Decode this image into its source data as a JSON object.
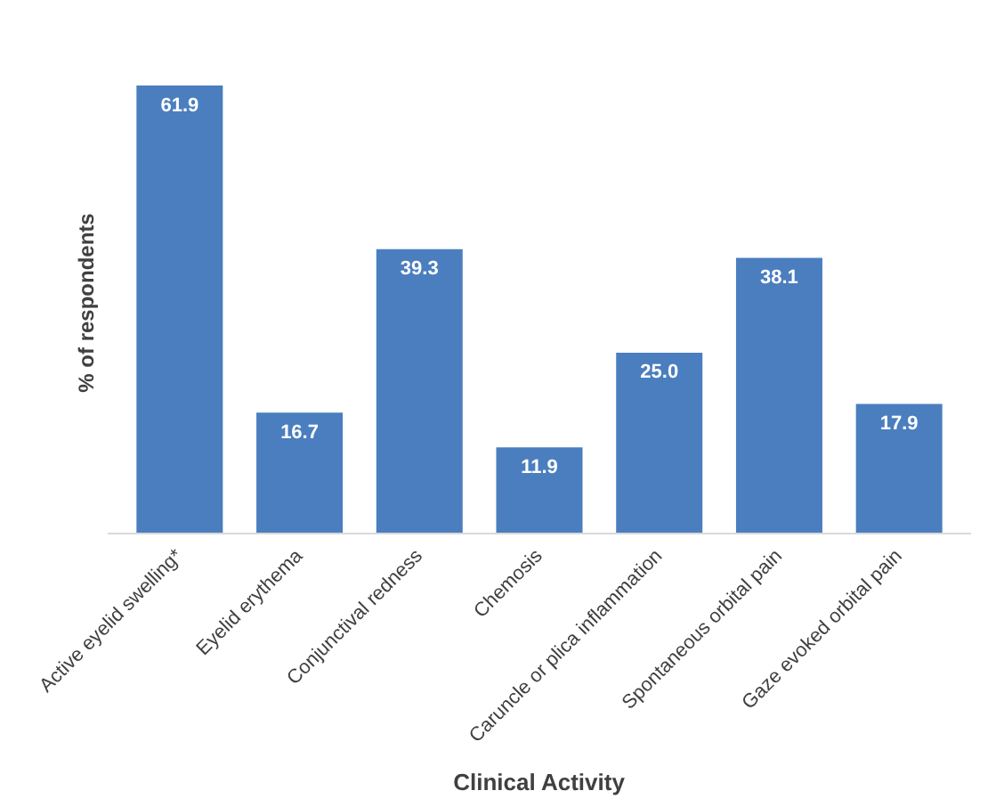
{
  "chart_data": {
    "type": "bar",
    "xlabel": "Clinical Activity",
    "ylabel": "% of respondents",
    "categories": [
      "Active eyelid swelling*",
      "Eyelid erythema",
      "Conjunctival redness",
      "Chemosis",
      "Caruncle or plica inflammation",
      "Spontaneous orbital pain",
      "Gaze evoked orbital pain"
    ],
    "values": [
      61.9,
      16.7,
      39.3,
      11.9,
      25.0,
      38.1,
      17.9
    ],
    "value_labels": [
      "61.9",
      "16.7",
      "39.3",
      "11.9",
      "25.0",
      "38.1",
      "17.9"
    ],
    "color": "#4a7ebf",
    "grid": false
  }
}
